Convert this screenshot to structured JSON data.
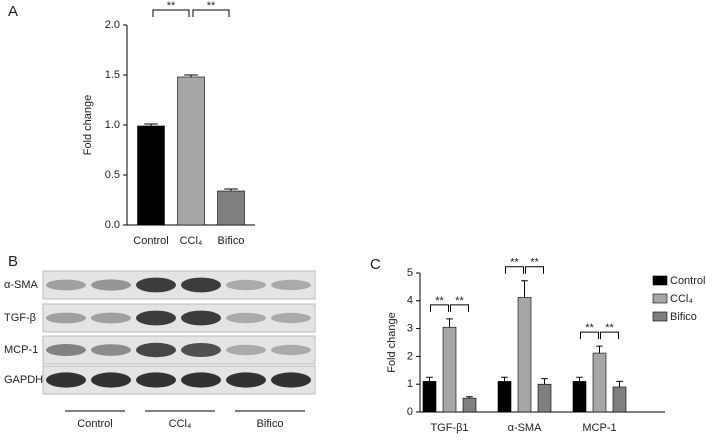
{
  "chart_data": [
    {
      "panel": "A",
      "type": "bar",
      "y_label": "Fold change",
      "categories": [
        "Control",
        "CCl₄",
        "Bifico"
      ],
      "values": [
        0.99,
        1.48,
        0.34
      ],
      "errors": [
        0.02,
        0.02,
        0.02
      ],
      "colors": [
        "#000000",
        "#a6a6a6",
        "#7f7f7f"
      ],
      "ylim": [
        0,
        2.0
      ],
      "yticks": [
        {
          "value": 0,
          "label": "0.0"
        },
        {
          "value": 0.5,
          "label": "0.5"
        },
        {
          "value": 1,
          "label": "1.0"
        },
        {
          "value": 1.5,
          "label": "1.5"
        },
        {
          "value": 2,
          "label": "2.0"
        }
      ],
      "annotations": [
        {
          "label": "**",
          "between": [
            "Control",
            "CCl₄"
          ]
        },
        {
          "label": "**",
          "between": [
            "CCl₄",
            "Bifico"
          ]
        }
      ]
    },
    {
      "panel": "C",
      "type": "bar",
      "y_label": "Fold change",
      "categories": [
        "TGF-β1",
        "α-SMA",
        "MCP-1"
      ],
      "series": [
        {
          "name": "Control",
          "color": "#000000",
          "values": [
            1.1,
            1.1,
            1.1
          ],
          "errors": [
            0.15,
            0.15,
            0.15
          ]
        },
        {
          "name": "CCl₄",
          "color": "#a6a6a6",
          "values": [
            3.05,
            4.12,
            2.12
          ],
          "errors": [
            0.3,
            0.6,
            0.25
          ]
        },
        {
          "name": "Bifico",
          "color": "#7f7f7f",
          "values": [
            0.5,
            1.0,
            0.9
          ],
          "errors": [
            0.05,
            0.2,
            0.2
          ]
        }
      ],
      "ylim": [
        0,
        5
      ],
      "yticks": [
        0,
        1,
        2,
        3,
        4,
        5
      ],
      "legend": "right",
      "annotations": [
        {
          "label": "**",
          "category": "TGF-β1",
          "between": [
            "Control",
            "CCl₄"
          ]
        },
        {
          "label": "**",
          "category": "TGF-β1",
          "between": [
            "CCl₄",
            "Bifico"
          ]
        },
        {
          "label": "**",
          "category": "α-SMA",
          "between": [
            "Control",
            "CCl₄"
          ]
        },
        {
          "label": "**",
          "category": "α-SMA",
          "between": [
            "CCl₄",
            "Bifico"
          ]
        },
        {
          "label": "**",
          "category": "MCP-1",
          "between": [
            "Control",
            "CCl₄"
          ]
        },
        {
          "label": "**",
          "category": "MCP-1",
          "between": [
            "CCl₄",
            "Bifico"
          ]
        }
      ]
    }
  ],
  "blot": {
    "panel": "B",
    "rows": [
      "α-SMA",
      "TGF-β",
      "MCP-1",
      "GAPDH"
    ],
    "groups": [
      "Control",
      "CCl₄",
      "Bifico"
    ]
  }
}
